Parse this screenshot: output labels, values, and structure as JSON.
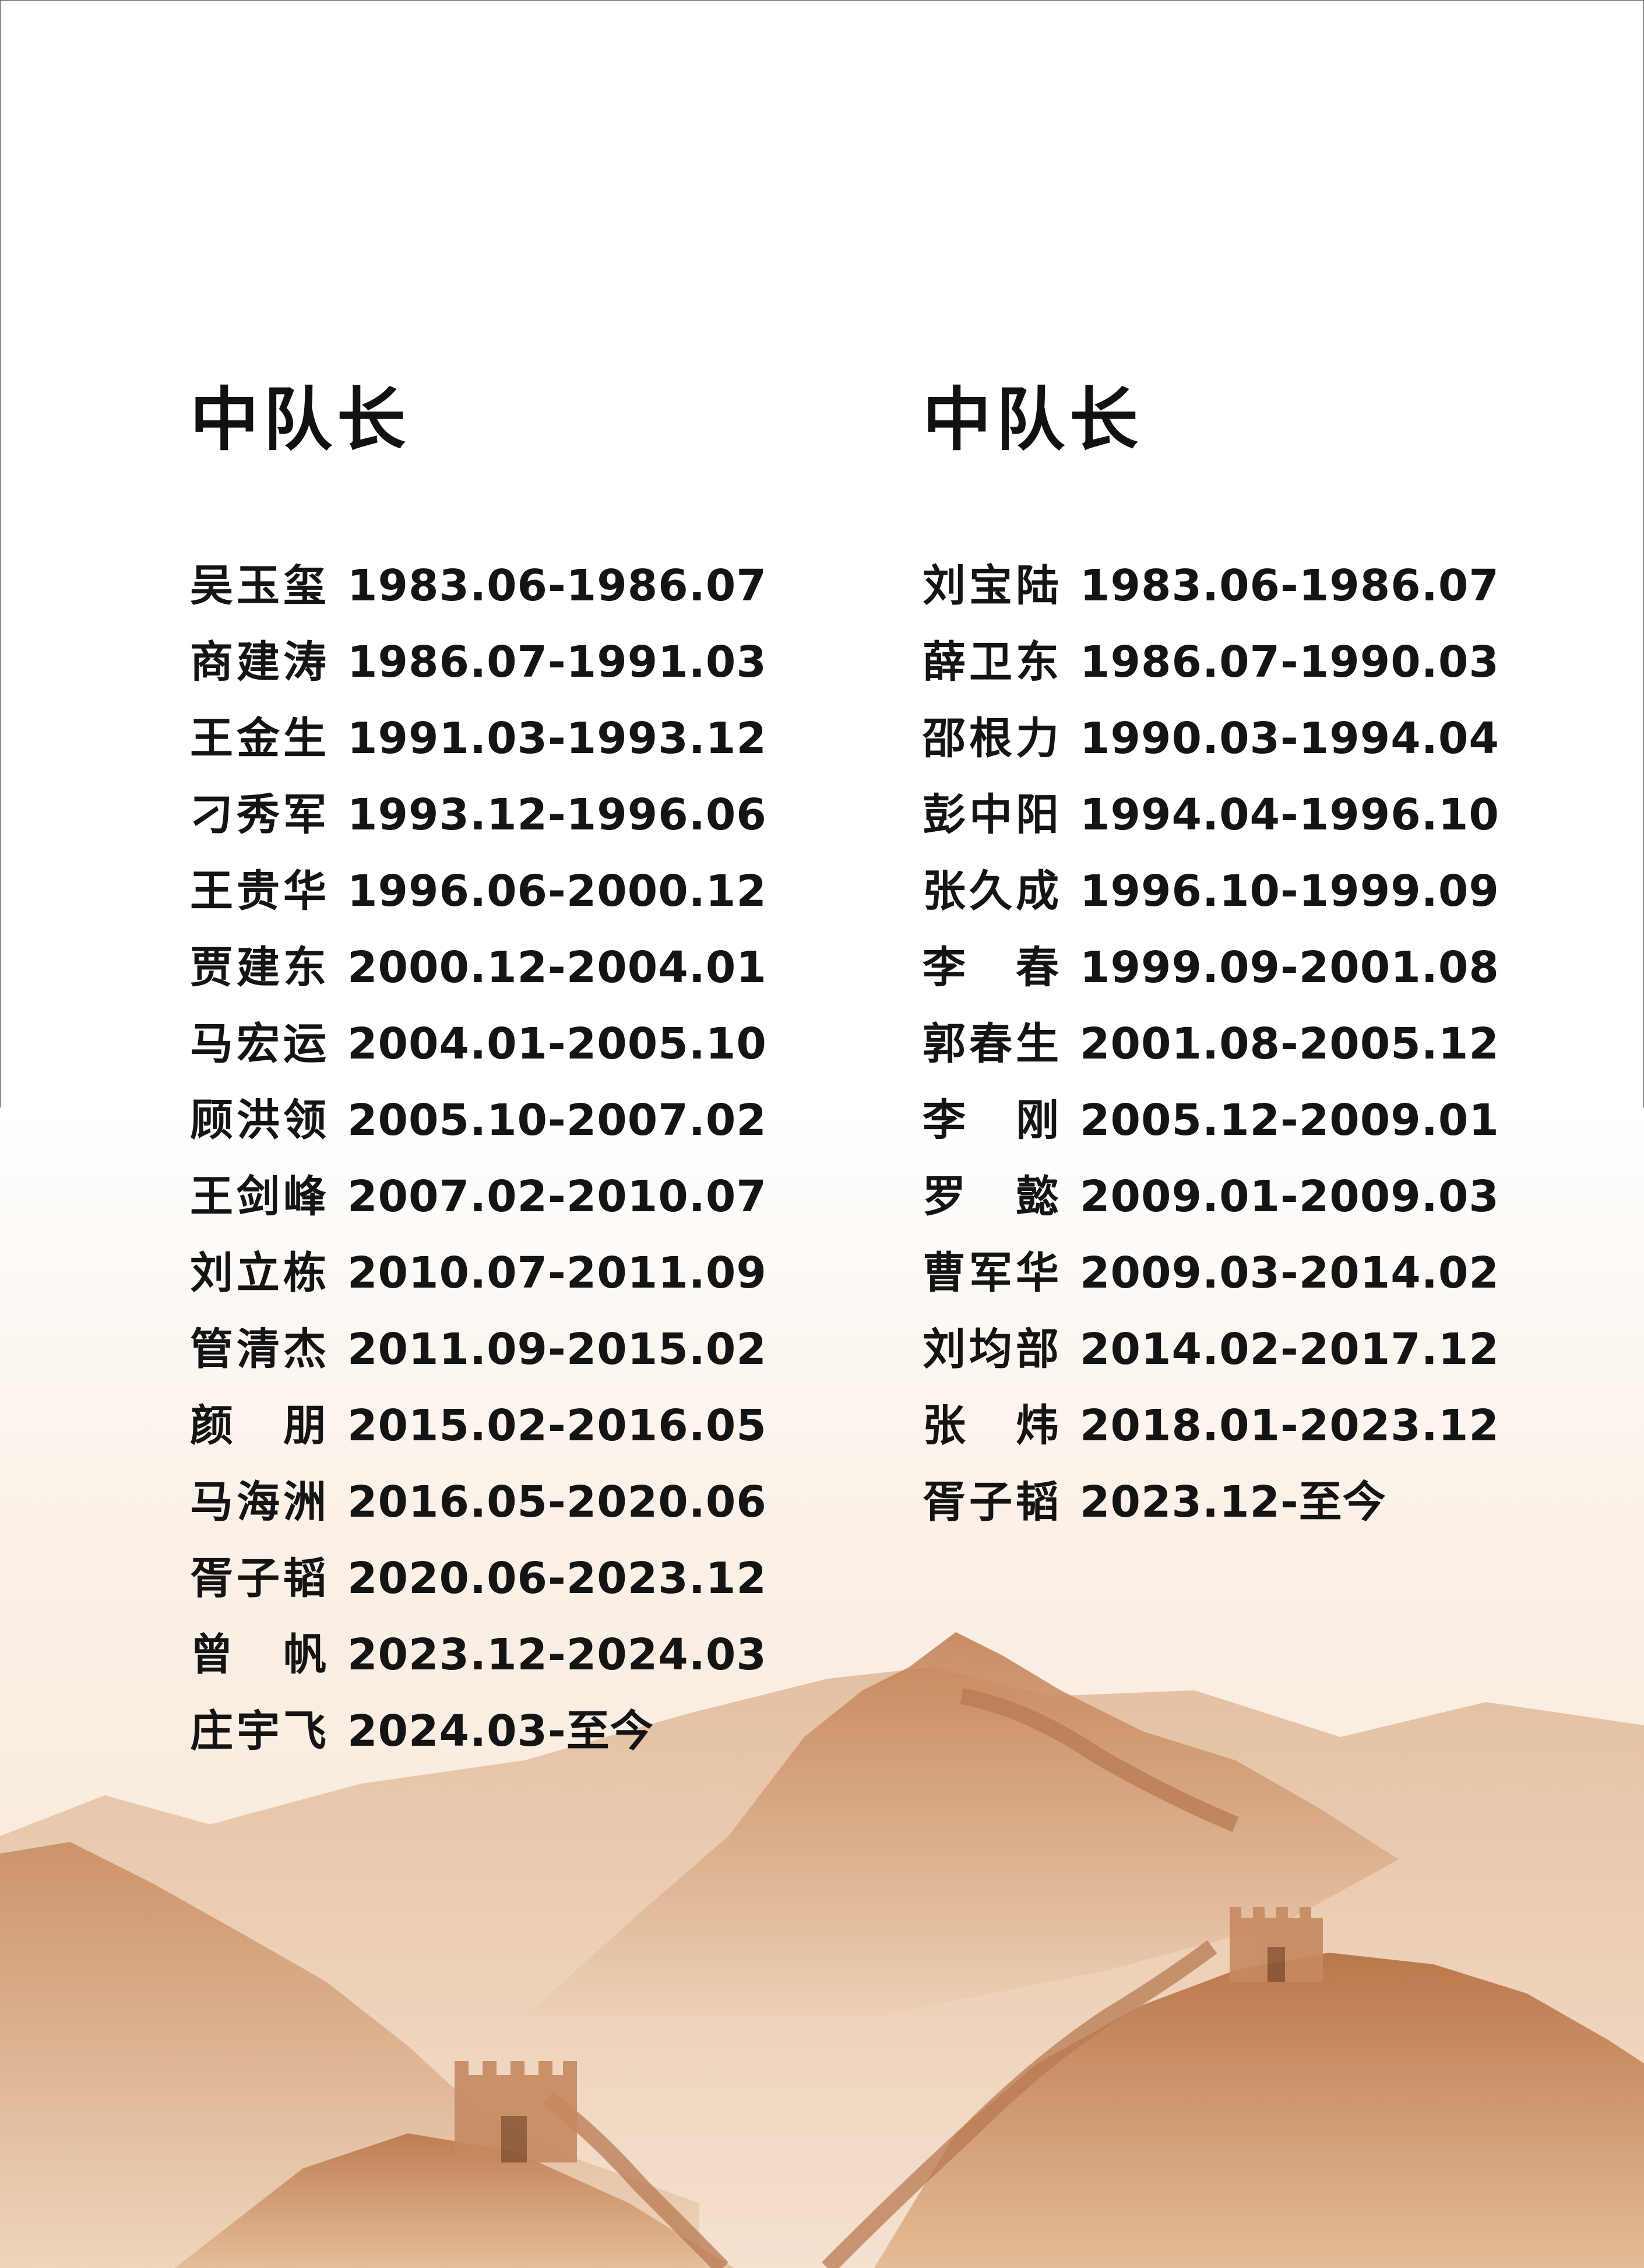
{
  "left_column": {
    "heading": "中队长",
    "entries": [
      {
        "name": "吴玉玺",
        "term": "1983.06-1986.07"
      },
      {
        "name": "商建涛",
        "term": "1986.07-1991.03"
      },
      {
        "name": "王金生",
        "term": "1991.03-1993.12"
      },
      {
        "name": "刁秀军",
        "term": "1993.12-1996.06"
      },
      {
        "name": "王贵华",
        "term": "1996.06-2000.12"
      },
      {
        "name": "贾建东",
        "term": "2000.12-2004.01"
      },
      {
        "name": "马宏运",
        "term": "2004.01-2005.10"
      },
      {
        "name": "顾洪领",
        "term": "2005.10-2007.02"
      },
      {
        "name": "王剑峰",
        "term": "2007.02-2010.07"
      },
      {
        "name": "刘立栋",
        "term": "2010.07-2011.09"
      },
      {
        "name": "管清杰",
        "term": "2011.09-2015.02"
      },
      {
        "name": "颜　朋",
        "term": "2015.02-2016.05"
      },
      {
        "name": "马海洲",
        "term": "2016.05-2020.06"
      },
      {
        "name": "胥子韬",
        "term": "2020.06-2023.12"
      },
      {
        "name": "曾　帆",
        "term": "2023.12-2024.03"
      },
      {
        "name": "庄宇飞",
        "term": "2024.03-至今"
      }
    ]
  },
  "right_column": {
    "heading": "中队长",
    "entries": [
      {
        "name": "刘宝陆",
        "term": "1983.06-1986.07"
      },
      {
        "name": "薛卫东",
        "term": "1986.07-1990.03"
      },
      {
        "name": "邵根力",
        "term": "1990.03-1994.04"
      },
      {
        "name": "彭中阳",
        "term": "1994.04-1996.10"
      },
      {
        "name": "张久成",
        "term": "1996.10-1999.09"
      },
      {
        "name": "李　春",
        "term": "1999.09-2001.08"
      },
      {
        "name": "郭春生",
        "term": "2001.08-2005.12"
      },
      {
        "name": "李　刚",
        "term": "2005.12-2009.01"
      },
      {
        "name": "罗　懿",
        "term": "2009.01-2009.03"
      },
      {
        "name": "曹军华",
        "term": "2009.03-2014.02"
      },
      {
        "name": "刘均部",
        "term": "2014.02-2017.12"
      },
      {
        "name": "张　炜",
        "term": "2018.01-2023.12"
      },
      {
        "name": "胥子韬",
        "term": "2023.12-至今"
      }
    ]
  },
  "colors": {
    "text": "#141414",
    "mountain_light": "#f3dcc4",
    "mountain_mid": "#d9a47a",
    "mountain_dark": "#b57448",
    "wall": "#c98a5e"
  }
}
